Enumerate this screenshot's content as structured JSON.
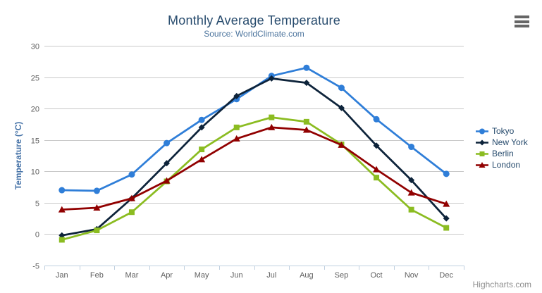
{
  "header": {
    "title": "Monthly Average Temperature",
    "subtitle": "Source: WorldClimate.com"
  },
  "context_menu": {
    "icon": "hamburger-menu-icon"
  },
  "credits": {
    "label": "Highcharts.com"
  },
  "theme": {
    "title_color": "#274b6d",
    "subtitle_color": "#4d759e",
    "axis_label_color": "#606060",
    "axis_title_color": "#4572a7",
    "grid_color": "#c9c9c9",
    "axis_line_color": "#c0d0e0",
    "legend_text_color": "#274b6d",
    "credits_color": "#909090",
    "menu_icon_color": "#666666",
    "background": "#ffffff"
  },
  "chart_data": {
    "type": "line",
    "title": "Monthly Average Temperature",
    "subtitle": "Source: WorldClimate.com",
    "xlabel": "",
    "ylabel": "Temperature (°C)",
    "ylim": [
      -5,
      30
    ],
    "yticks": [
      -5,
      0,
      5,
      10,
      15,
      20,
      25,
      30
    ],
    "grid": true,
    "legend_position": "right",
    "categories": [
      "Jan",
      "Feb",
      "Mar",
      "Apr",
      "May",
      "Jun",
      "Jul",
      "Aug",
      "Sep",
      "Oct",
      "Nov",
      "Dec"
    ],
    "series": [
      {
        "name": "Tokyo",
        "color": "#2f7ed8",
        "marker": "circle",
        "values": [
          7.0,
          6.9,
          9.5,
          14.5,
          18.2,
          21.5,
          25.2,
          26.5,
          23.3,
          18.3,
          13.9,
          9.6
        ]
      },
      {
        "name": "New York",
        "color": "#0d233a",
        "marker": "diamond",
        "values": [
          -0.2,
          0.8,
          5.7,
          11.3,
          17.0,
          22.0,
          24.8,
          24.1,
          20.1,
          14.1,
          8.6,
          2.5
        ]
      },
      {
        "name": "Berlin",
        "color": "#8bbc21",
        "marker": "square",
        "values": [
          -0.9,
          0.6,
          3.5,
          8.4,
          13.5,
          17.0,
          18.6,
          17.9,
          14.3,
          9.0,
          3.9,
          1.0
        ]
      },
      {
        "name": "London",
        "color": "#910000",
        "marker": "triangle",
        "values": [
          3.9,
          4.2,
          5.7,
          8.5,
          11.9,
          15.2,
          17.0,
          16.6,
          14.2,
          10.3,
          6.6,
          4.8
        ]
      }
    ]
  }
}
